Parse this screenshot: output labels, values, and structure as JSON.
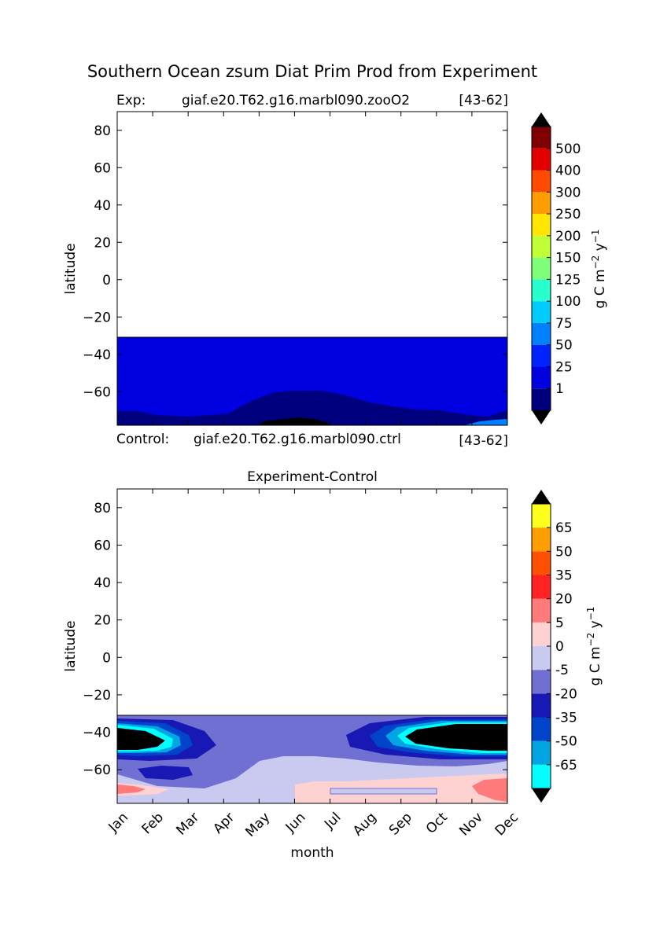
{
  "page": {
    "title": "Southern Ocean zsum Diat Prim Prod from Experiment"
  },
  "top": {
    "exp_label": "Exp:",
    "exp_case": "giaf.e20.T62.g16.marbl090.zooO2",
    "exp_years": "[43-62]",
    "control_label": "Control:",
    "control_case": "giaf.e20.T62.g16.marbl090.ctrl",
    "control_years": "[43-62]"
  },
  "bottom": {
    "title": "Experiment-Control"
  },
  "chart_data": [
    {
      "type": "heatmap",
      "name": "experiment",
      "ylabel": "latitude",
      "xlabel": "",
      "ylim": [
        -78,
        90
      ],
      "yticks": [
        "80",
        "60",
        "40",
        "20",
        "0",
        "−20",
        "−40",
        "−60"
      ],
      "ytick_values": [
        80,
        60,
        40,
        20,
        0,
        -20,
        -40,
        -60
      ],
      "data_top_lat": -31,
      "colorbar": {
        "label": "g C m⁻² y⁻¹",
        "levels": [
          "1",
          "25",
          "50",
          "75",
          "100",
          "125",
          "150",
          "200",
          "250",
          "300",
          "400",
          "500"
        ],
        "colors": [
          "#00007f",
          "#0000e0",
          "#0022ff",
          "#0080ff",
          "#00ccff",
          "#29ffcd",
          "#7dff79",
          "#c0ff36",
          "#ffe500",
          "#ff9c00",
          "#ff4a00",
          "#e30000",
          "#7f0000"
        ],
        "extend_color": "#000000"
      },
      "regions": [
        {
          "name": "background",
          "color": "#0000e0"
        },
        {
          "name": "low-band",
          "color": "#00007f"
        },
        {
          "name": "zero-core",
          "color": "#000000"
        },
        {
          "name": "edge-high",
          "color": "#0080ff"
        }
      ]
    },
    {
      "type": "heatmap",
      "name": "difference",
      "ylabel": "latitude",
      "xlabel": "month",
      "ylim": [
        -78,
        90
      ],
      "yticks": [
        "80",
        "60",
        "40",
        "20",
        "0",
        "−20",
        "−40",
        "−60"
      ],
      "ytick_values": [
        80,
        60,
        40,
        20,
        0,
        -20,
        -40,
        -60
      ],
      "categories": [
        "Jan",
        "Feb",
        "Mar",
        "Apr",
        "May",
        "Jun",
        "Jul",
        "Aug",
        "Sep",
        "Oct",
        "Nov",
        "Dec"
      ],
      "data_top_lat": -31,
      "colorbar": {
        "label": "g C m⁻² y⁻¹",
        "levels": [
          "-65",
          "-50",
          "-35",
          "-20",
          "-5",
          "0",
          "5",
          "20",
          "35",
          "50",
          "65"
        ],
        "colors": [
          "#00ffff",
          "#00a5e1",
          "#0044cc",
          "#1818b4",
          "#7070d2",
          "#cacaf0",
          "#ffd2d2",
          "#ff7a7a",
          "#ff2222",
          "#ff4f00",
          "#ff9e00",
          "#ffff1e"
        ],
        "extend_low": "#000000",
        "extend_high": "#000000"
      },
      "regions": [
        {
          "name": "background",
          "color": "#7070d2"
        },
        {
          "name": "near-zero-negative",
          "color": "#cacaf0"
        },
        {
          "name": "west-core",
          "color": "#000000"
        },
        {
          "name": "east-core",
          "color": "#000000"
        },
        {
          "name": "positive-patch",
          "color": "#ffd2d2"
        },
        {
          "name": "strong-positive",
          "color": "#ff7a7a"
        }
      ]
    }
  ]
}
